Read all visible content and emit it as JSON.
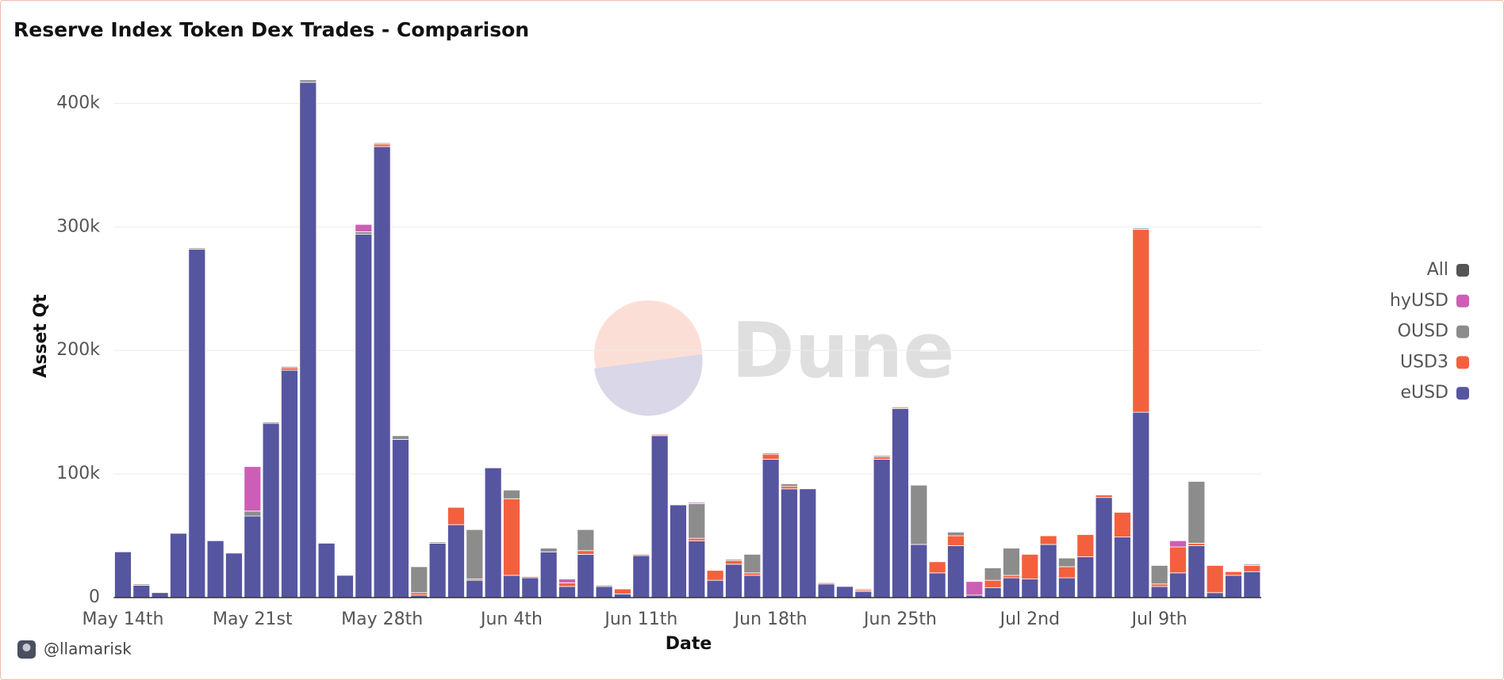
{
  "chart_data": {
    "type": "bar",
    "stacked": true,
    "title": "Reserve Index Token Dex Trades - Comparison",
    "xlabel": "Date",
    "ylabel": "Asset Qt",
    "watermark": "Dune",
    "author": "@llamarisk",
    "categories": [
      "May 14th",
      null,
      null,
      null,
      null,
      null,
      null,
      "May 21st",
      null,
      null,
      null,
      null,
      null,
      null,
      "May 28th",
      null,
      null,
      null,
      null,
      null,
      null,
      "Jun 4th",
      null,
      null,
      null,
      null,
      null,
      null,
      "Jun 11th",
      null,
      null,
      null,
      null,
      null,
      null,
      "Jun 18th",
      null,
      null,
      null,
      null,
      null,
      null,
      "Jun 25th",
      null,
      null,
      null,
      null,
      null,
      null,
      "Jul 2nd",
      null,
      null,
      null,
      null,
      null,
      null,
      "Jul 9th",
      null,
      null,
      null,
      null,
      null
    ],
    "series": [
      {
        "name": "eUSD",
        "color": "#5655a0",
        "values": [
          37000,
          10000,
          4000,
          52000,
          282000,
          46000,
          36000,
          66000,
          141000,
          184000,
          417000,
          44000,
          18000,
          294000,
          365000,
          128000,
          2000,
          44000,
          59000,
          14000,
          105000,
          18000,
          16000,
          37000,
          9000,
          35000,
          9000,
          3000,
          34000,
          131000,
          75000,
          46000,
          14000,
          27000,
          18000,
          112000,
          88000,
          88000,
          11000,
          9000,
          5000,
          112000,
          153000,
          43000,
          20000,
          42000,
          2000,
          8000,
          16000,
          15000,
          43000,
          16000,
          33000,
          81000,
          49000,
          150000,
          9000,
          20000,
          42000,
          4000,
          18000,
          21000
        ]
      },
      {
        "name": "USD3",
        "color": "#f4603e",
        "values": [
          0,
          0,
          0,
          0,
          0,
          0,
          0,
          0,
          0,
          2000,
          0,
          0,
          0,
          0,
          2000,
          0,
          2000,
          0,
          14000,
          1000,
          0,
          62000,
          1000,
          0,
          3000,
          3000,
          0,
          4000,
          1000,
          1000,
          0,
          2000,
          8000,
          3000,
          2000,
          4000,
          2000,
          0,
          1000,
          0,
          1000,
          2000,
          1000,
          0,
          9000,
          8000,
          0,
          6000,
          2000,
          20000,
          7000,
          9000,
          18000,
          2000,
          20000,
          148000,
          2000,
          21000,
          2000,
          22000,
          3000,
          5000
        ]
      },
      {
        "name": "OUSD",
        "color": "#8c8c8c",
        "values": [
          0,
          1000,
          0,
          0,
          1000,
          0,
          0,
          4000,
          1000,
          1000,
          2000,
          0,
          0,
          2000,
          1000,
          3000,
          21000,
          1000,
          0,
          40000,
          0,
          7000,
          0,
          3000,
          0,
          17000,
          1000,
          0,
          0,
          0,
          0,
          28000,
          0,
          1000,
          15000,
          1000,
          2000,
          0,
          0,
          0,
          1000,
          1000,
          0,
          48000,
          0,
          3000,
          0,
          10000,
          22000,
          0,
          0,
          7000,
          0,
          0,
          0,
          1000,
          15000,
          0,
          50000,
          0,
          0,
          1000
        ]
      },
      {
        "name": "hyUSD",
        "color": "#cc5fb5",
        "values": [
          0,
          0,
          0,
          0,
          0,
          0,
          0,
          36000,
          0,
          0,
          0,
          0,
          0,
          6000,
          0,
          0,
          0,
          0,
          0,
          0,
          0,
          0,
          0,
          0,
          3000,
          0,
          0,
          0,
          0,
          0,
          0,
          1000,
          0,
          0,
          0,
          0,
          0,
          0,
          0,
          0,
          0,
          0,
          0,
          0,
          0,
          0,
          11000,
          0,
          0,
          0,
          0,
          0,
          0,
          0,
          0,
          0,
          0,
          5000,
          0,
          0,
          0,
          0
        ]
      },
      {
        "name": "All",
        "color": "#555555",
        "values": [
          null,
          null,
          null,
          null,
          null,
          null,
          null,
          null,
          null,
          null,
          null,
          null,
          null,
          null,
          null,
          null,
          null,
          null,
          null,
          null,
          null,
          null,
          null,
          null,
          null,
          null,
          null,
          null,
          null,
          null,
          null,
          null,
          null,
          null,
          null,
          null,
          null,
          null,
          null,
          null,
          null,
          null,
          null,
          null,
          null,
          null,
          null,
          null,
          null,
          null,
          null,
          null,
          null,
          null,
          null,
          null,
          null,
          null,
          null,
          null,
          null,
          null
        ]
      }
    ],
    "ylim": [
      0,
      440000
    ],
    "yticks": [
      0,
      {
        "value": 100000,
        "label": "100k"
      },
      {
        "value": 200000,
        "label": "200k"
      },
      {
        "value": 300000,
        "label": "300k"
      },
      {
        "value": 400000,
        "label": "400k"
      }
    ],
    "grid": true,
    "legend": "right"
  }
}
